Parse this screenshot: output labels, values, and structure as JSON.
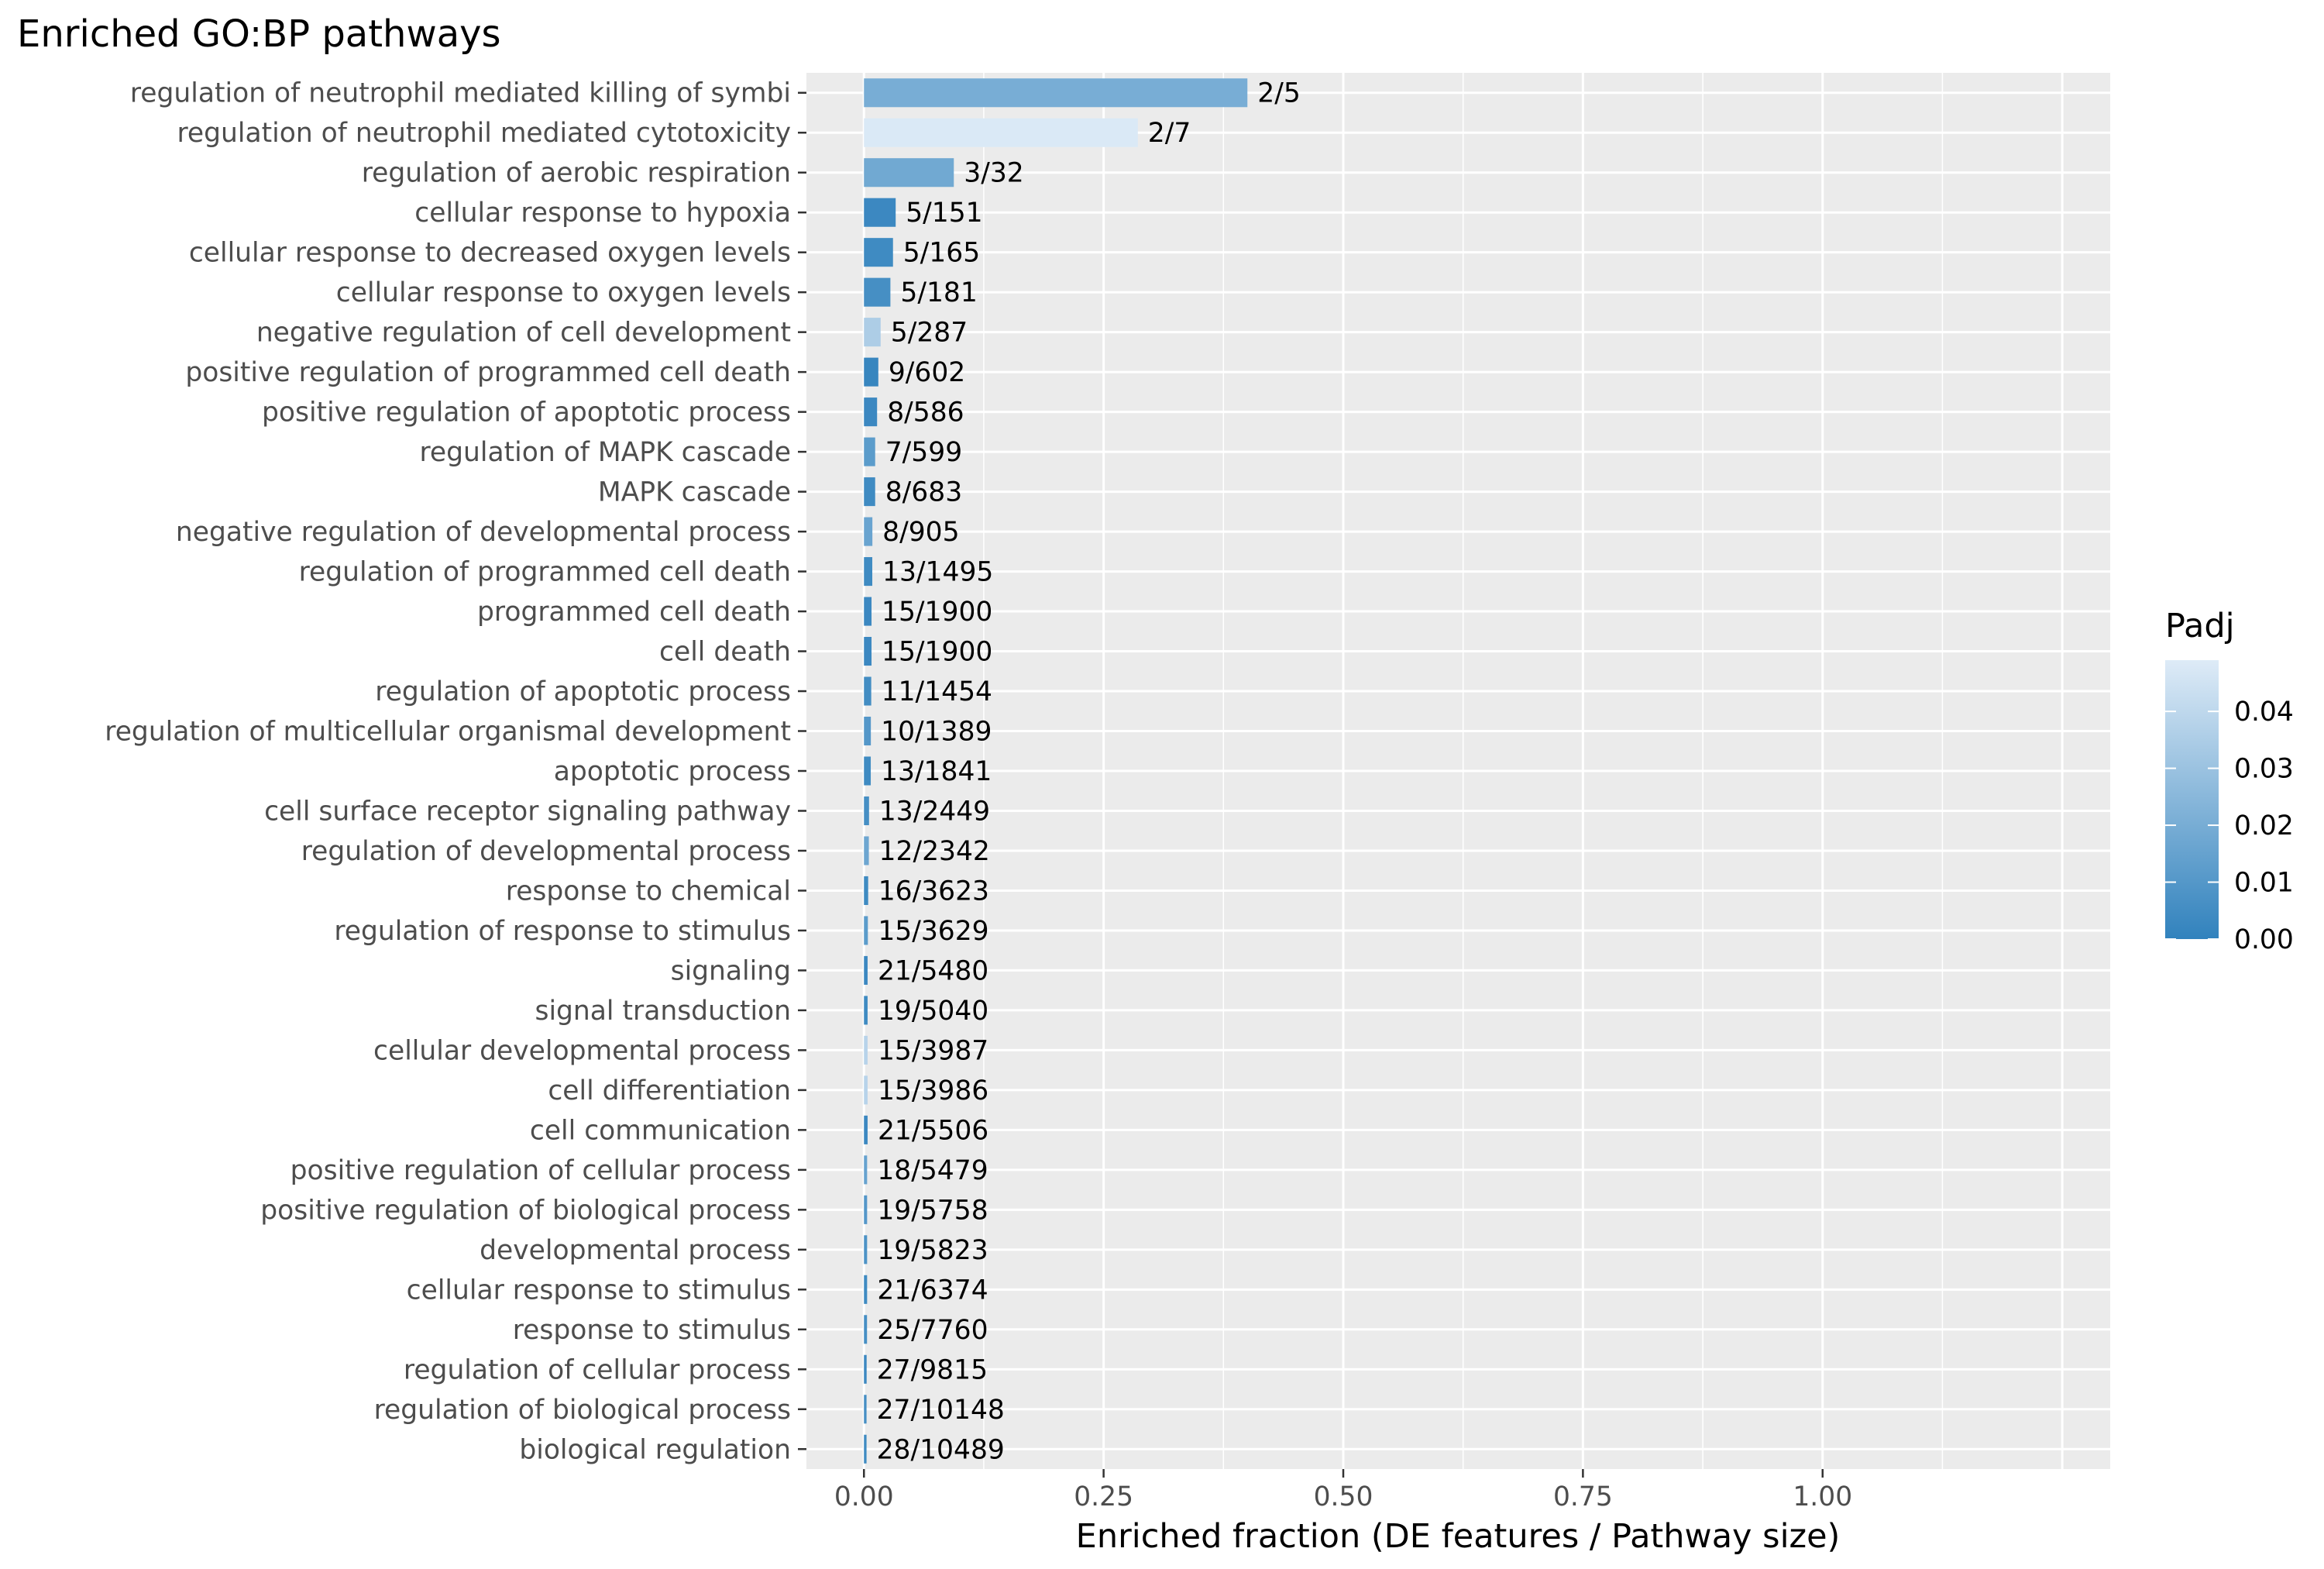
{
  "chart_data": {
    "type": "bar",
    "orientation": "horizontal",
    "title": "Enriched GO:BP pathways",
    "xlabel": "Enriched fraction (DE features / Pathway size)",
    "ylabel": "",
    "xlim": [
      -0.06,
      1.3
    ],
    "xticks": [
      0.0,
      0.25,
      0.5,
      0.75,
      1.0
    ],
    "xtick_labels": [
      "0.00",
      "0.25",
      "0.50",
      "0.75",
      "1.00"
    ],
    "grid": true,
    "legend": {
      "title": "Padj",
      "placement": "right",
      "range": [
        0,
        0.049
      ],
      "ticks": [
        0.0,
        0.01,
        0.02,
        0.03,
        0.04
      ],
      "tick_labels": [
        "0.00",
        "0.01",
        "0.02",
        "0.03",
        "0.04"
      ],
      "color_low": "#3182bd",
      "color_high": "#deebf7"
    },
    "categories": [
      "regulation of neutrophil mediated killing of symbi",
      "regulation of neutrophil mediated cytotoxicity",
      "regulation of aerobic respiration",
      "cellular response to hypoxia",
      "cellular response to decreased oxygen levels",
      "cellular response to oxygen levels",
      "negative regulation of cell development",
      "positive regulation of programmed cell death",
      "positive regulation of apoptotic process",
      "regulation of MAPK cascade",
      "MAPK cascade",
      "negative regulation of developmental process",
      "regulation of programmed cell death",
      "programmed cell death",
      "cell death",
      "regulation of apoptotic process",
      "regulation of multicellular organismal development",
      "apoptotic process",
      "cell surface receptor signaling pathway",
      "regulation of developmental process",
      "response to chemical",
      "regulation of response to stimulus",
      "signaling",
      "signal transduction",
      "cellular developmental process",
      "cell differentiation",
      "cell communication",
      "positive regulation of cellular process",
      "positive regulation of biological process",
      "developmental process",
      "cellular response to stimulus",
      "response to stimulus",
      "regulation of cellular process",
      "regulation of biological process",
      "biological regulation"
    ],
    "labels": [
      "2/5",
      "2/7",
      "3/32",
      "5/151",
      "5/165",
      "5/181",
      "5/287",
      "9/602",
      "8/586",
      "7/599",
      "8/683",
      "8/905",
      "13/1495",
      "15/1900",
      "15/1900",
      "11/1454",
      "10/1389",
      "13/1841",
      "13/2449",
      "12/2342",
      "16/3623",
      "15/3629",
      "21/5480",
      "19/5040",
      "15/3987",
      "15/3986",
      "21/5506",
      "18/5479",
      "19/5758",
      "19/5823",
      "21/6374",
      "25/7760",
      "27/9815",
      "27/10148",
      "28/10489"
    ],
    "values": [
      0.4,
      0.2857,
      0.09375,
      0.0331,
      0.0303,
      0.0276,
      0.0174,
      0.015,
      0.0137,
      0.0117,
      0.0117,
      0.0088,
      0.0087,
      0.0079,
      0.0079,
      0.0076,
      0.0072,
      0.0071,
      0.0053,
      0.0051,
      0.0044,
      0.0041,
      0.0038,
      0.0038,
      0.0038,
      0.0038,
      0.0038,
      0.0033,
      0.0033,
      0.0033,
      0.0033,
      0.0032,
      0.0028,
      0.0027,
      0.0027
    ],
    "padj": [
      0.02,
      0.048,
      0.018,
      0.003,
      0.004,
      0.006,
      0.035,
      0.002,
      0.003,
      0.012,
      0.004,
      0.016,
      0.004,
      0.003,
      0.003,
      0.005,
      0.01,
      0.004,
      0.006,
      0.017,
      0.004,
      0.012,
      0.003,
      0.004,
      0.038,
      0.038,
      0.003,
      0.015,
      0.01,
      0.008,
      0.004,
      0.006,
      0.003,
      0.006,
      0.004
    ]
  }
}
